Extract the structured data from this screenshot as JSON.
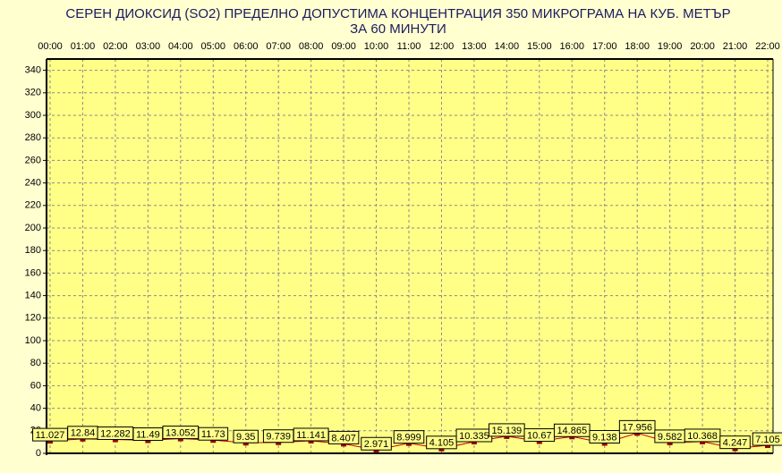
{
  "chart_data": {
    "type": "line",
    "title": "СЕРЕН ДИОКСИД  (SO2)  ПРЕДЕЛНО ДОПУСТИМА КОНЦЕНТРАЦИЯ 350 МИКРОГРАМА  НА КУБ. МЕТЪР",
    "subtitle": "ЗА 60 МИНУТИ",
    "categories": [
      "00:00",
      "01:00",
      "02:00",
      "03:00",
      "04:00",
      "05:00",
      "06:00",
      "07:00",
      "08:00",
      "09:00",
      "10:00",
      "11:00",
      "12:00",
      "13:00",
      "14:00",
      "15:00",
      "16:00",
      "17:00",
      "18:00",
      "19:00",
      "20:00",
      "21:00",
      "22:00"
    ],
    "series": [
      {
        "color": "#cc0000",
        "marker_color": "#990000",
        "values": [
          11.027,
          12.84,
          12.282,
          11.49,
          13.052,
          11.73,
          9.35,
          9.739,
          11.141,
          8.407,
          2.971,
          8.999,
          4.105,
          10.335,
          15.139,
          10.67,
          14.865,
          9.138,
          17.956,
          9.582,
          10.368,
          4.247,
          7.105
        ]
      }
    ],
    "ylim": [
      0,
      350
    ],
    "yticks": [
      0,
      20,
      40,
      60,
      80,
      100,
      120,
      140,
      160,
      180,
      200,
      220,
      240,
      260,
      280,
      300,
      320,
      340
    ],
    "grid": true,
    "plot_background": "#ffff88",
    "label_background": "#ffff88"
  }
}
